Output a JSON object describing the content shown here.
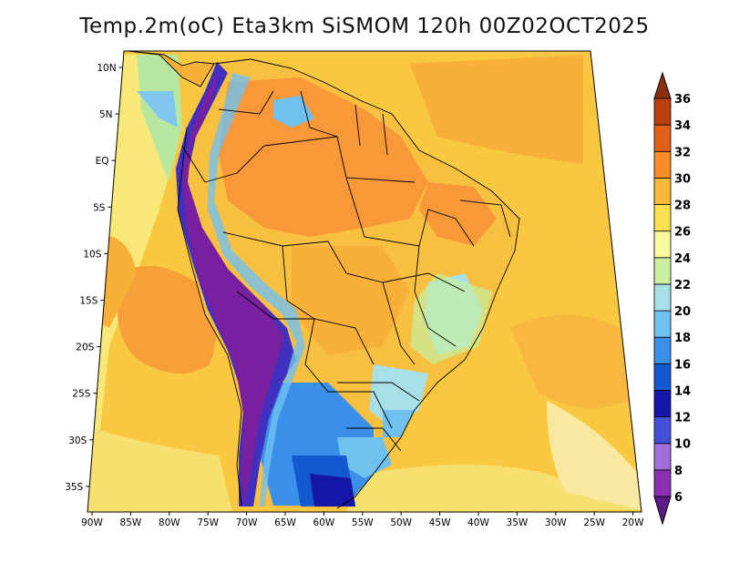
{
  "title": "Temp.2m(oC) Eta3km SiSMOM 120h 00Z02OCT2025",
  "lat_labels": [
    "10N",
    "5N",
    "EQ",
    "5S",
    "10S",
    "15S",
    "20S",
    "25S",
    "30S",
    "35S"
  ],
  "lon_labels": [
    "90W",
    "85W",
    "80W",
    "75W",
    "70W",
    "65W",
    "60W",
    "55W",
    "50W",
    "45W",
    "40W",
    "35W",
    "30W",
    "25W",
    "20W"
  ],
  "colorbar": {
    "labels": [
      "6",
      "8",
      "10",
      "12",
      "14",
      "16",
      "18",
      "20",
      "22",
      "24",
      "26",
      "28",
      "30",
      "32",
      "34",
      "36"
    ],
    "colors": [
      "#5a1a8a",
      "#8a2fb0",
      "#a070d8",
      "#4450d8",
      "#1416a8",
      "#1458d0",
      "#3a8fe8",
      "#70c0f0",
      "#a8e0e8",
      "#c8f0a0",
      "#f8f8a0",
      "#f8e050",
      "#f8b838",
      "#f88c28",
      "#e06018",
      "#b84010",
      "#8a3010"
    ]
  },
  "colors": {
    "ocean_warm": "#f8c840",
    "ocean_hot": "#f8a038",
    "ocean_cool": "#f8e878",
    "land": "#f8c040",
    "amazon": "#f89838",
    "andes_high": "#7820a0",
    "andes_mid": "#4030c0",
    "south_cool": "#3a80e0",
    "coast_lines": "#000000"
  }
}
